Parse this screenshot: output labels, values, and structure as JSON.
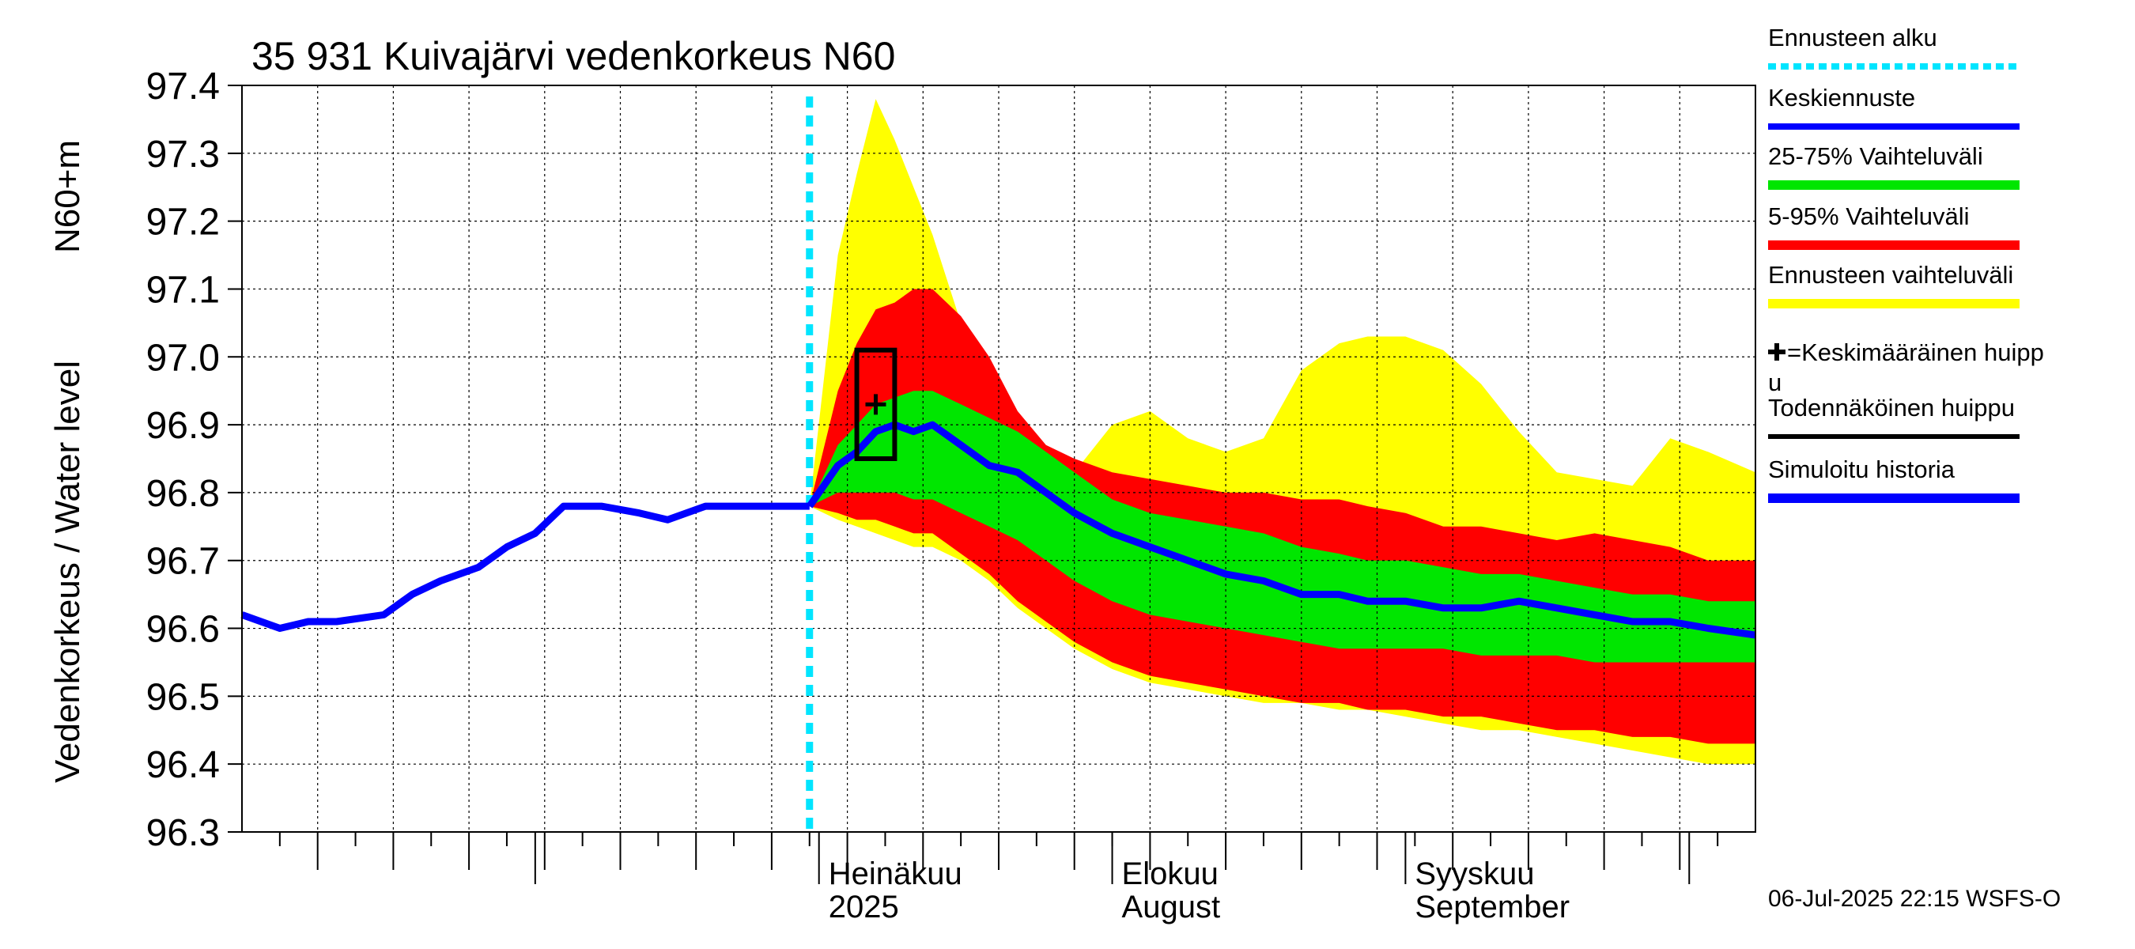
{
  "chart_data": {
    "type": "area",
    "title": "35 931 Kuivajärvi vedenkorkeus N60",
    "ylabel_unit": "N60+m",
    "ylabel": "Vedenkorkeus / Water level",
    "ylim": [
      96.3,
      97.4
    ],
    "yticks": [
      "96.3",
      "96.4",
      "96.5",
      "96.6",
      "96.7",
      "96.8",
      "96.9",
      "97.0",
      "97.1",
      "97.2",
      "97.3",
      "97.4"
    ],
    "grid": true,
    "legend_position": "right",
    "x_start": "2025-05-01",
    "x_end": "2025-10-08",
    "forecast_start": "2025-06-30",
    "month_labels": [
      {
        "date": "2025-07-01",
        "line1": "Heinäkuu",
        "line2": "2025"
      },
      {
        "date": "2025-08-01",
        "line1": "Elokuu",
        "line2": "August"
      },
      {
        "date": "2025-09-01",
        "line1": "Syyskuu",
        "line2": "September"
      }
    ],
    "history": {
      "name": "Simuloitu historia",
      "x": [
        "2025-05-01",
        "2025-05-05",
        "2025-05-08",
        "2025-05-11",
        "2025-05-16",
        "2025-05-19",
        "2025-05-22",
        "2025-05-26",
        "2025-05-29",
        "2025-06-01",
        "2025-06-04",
        "2025-06-08",
        "2025-06-12",
        "2025-06-15",
        "2025-06-19",
        "2025-06-22",
        "2025-06-25",
        "2025-06-28",
        "2025-06-30"
      ],
      "y": [
        96.62,
        96.6,
        96.61,
        96.61,
        96.62,
        96.65,
        96.67,
        96.69,
        96.72,
        96.74,
        96.78,
        96.78,
        96.77,
        96.76,
        96.78,
        96.78,
        96.78,
        96.78,
        96.78
      ]
    },
    "forecast_x": [
      "2025-06-30",
      "2025-07-03",
      "2025-07-05",
      "2025-07-07",
      "2025-07-09",
      "2025-07-11",
      "2025-07-13",
      "2025-07-16",
      "2025-07-19",
      "2025-07-22",
      "2025-07-25",
      "2025-07-28",
      "2025-08-01",
      "2025-08-05",
      "2025-08-09",
      "2025-08-13",
      "2025-08-17",
      "2025-08-21",
      "2025-08-25",
      "2025-08-28",
      "2025-09-01",
      "2025-09-05",
      "2025-09-09",
      "2025-09-13",
      "2025-09-17",
      "2025-09-21",
      "2025-09-25",
      "2025-09-29",
      "2025-10-03",
      "2025-10-08"
    ],
    "median": {
      "name": "Keskiennuste",
      "y": [
        96.78,
        96.84,
        96.86,
        96.89,
        96.9,
        96.89,
        96.9,
        96.87,
        96.84,
        96.83,
        96.8,
        96.77,
        96.74,
        96.72,
        96.7,
        96.68,
        96.67,
        96.65,
        96.65,
        96.64,
        96.64,
        96.63,
        96.63,
        96.64,
        96.63,
        96.62,
        96.61,
        96.61,
        96.6,
        96.59
      ]
    },
    "band_25_75": {
      "name": "25-75% Vaihteluväli",
      "lower": [
        96.78,
        96.8,
        96.8,
        96.8,
        96.8,
        96.79,
        96.79,
        96.77,
        96.75,
        96.73,
        96.7,
        96.67,
        96.64,
        96.62,
        96.61,
        96.6,
        96.59,
        96.58,
        96.57,
        96.57,
        96.57,
        96.57,
        96.56,
        96.56,
        96.56,
        96.55,
        96.55,
        96.55,
        96.55,
        96.55
      ],
      "upper": [
        96.78,
        96.87,
        96.9,
        96.93,
        96.94,
        96.95,
        96.95,
        96.93,
        96.91,
        96.89,
        96.86,
        96.83,
        96.79,
        96.77,
        96.76,
        96.75,
        96.74,
        96.72,
        96.71,
        96.7,
        96.7,
        96.69,
        96.68,
        96.68,
        96.67,
        96.66,
        96.65,
        96.65,
        96.64,
        96.64
      ]
    },
    "band_5_95": {
      "name": "5-95% Vaihteluväli",
      "lower": [
        96.78,
        96.77,
        96.76,
        96.76,
        96.75,
        96.74,
        96.74,
        96.71,
        96.68,
        96.64,
        96.61,
        96.58,
        96.55,
        96.53,
        96.52,
        96.51,
        96.5,
        96.49,
        96.49,
        96.48,
        96.48,
        96.47,
        96.47,
        96.46,
        96.45,
        96.45,
        96.44,
        96.44,
        96.43,
        96.43
      ],
      "upper": [
        96.78,
        96.95,
        97.02,
        97.07,
        97.08,
        97.1,
        97.1,
        97.06,
        97.0,
        96.92,
        96.87,
        96.85,
        96.83,
        96.82,
        96.81,
        96.8,
        96.8,
        96.79,
        96.79,
        96.78,
        96.77,
        96.75,
        96.75,
        96.74,
        96.73,
        96.74,
        96.73,
        96.72,
        96.7,
        96.7
      ]
    },
    "band_range": {
      "name": "Ennusteen vaihteluväli",
      "lower": [
        96.78,
        96.76,
        96.75,
        96.74,
        96.73,
        96.72,
        96.72,
        96.7,
        96.67,
        96.63,
        96.6,
        96.57,
        96.54,
        96.52,
        96.51,
        96.5,
        96.49,
        96.49,
        96.48,
        96.48,
        96.47,
        96.46,
        96.45,
        96.45,
        96.44,
        96.43,
        96.42,
        96.41,
        96.4,
        96.4
      ],
      "upper": [
        96.78,
        97.15,
        97.27,
        97.38,
        97.32,
        97.25,
        97.18,
        97.05,
        96.95,
        96.9,
        96.86,
        96.83,
        96.9,
        96.92,
        96.88,
        96.86,
        96.88,
        96.98,
        97.02,
        97.03,
        97.03,
        97.01,
        96.96,
        96.89,
        96.83,
        96.82,
        96.81,
        96.88,
        96.86,
        96.83
      ]
    },
    "mean_peak": {
      "x": "2025-07-07",
      "y": 96.93
    },
    "probable_peak": {
      "x_start": "2025-07-05",
      "x_end": "2025-07-09",
      "y_low": 96.85,
      "y_high": 97.01
    },
    "legend": [
      {
        "label": "Ennusteen alku",
        "color": "#00e5ff",
        "style": "dashed"
      },
      {
        "label": "Keskiennuste",
        "color": "#0000ff",
        "style": "line"
      },
      {
        "label": "25-75% Vaihteluväli",
        "color": "#00e600",
        "style": "line"
      },
      {
        "label": "5-95% Vaihteluväli",
        "color": "#ff0000",
        "style": "line"
      },
      {
        "label": "Ennusteen vaihteluväli",
        "color": "#ffff00",
        "style": "line"
      },
      {
        "label_line1": "=Keskimääräinen huipp",
        "label_line2": "u",
        "color": "#000000",
        "style": "plus"
      },
      {
        "label": "Todennäköinen huippu",
        "color": "#000000",
        "style": "line"
      },
      {
        "label": "Simuloitu historia",
        "color": "#0000ff",
        "style": "line"
      }
    ],
    "footer": "06-Jul-2025 22:15 WSFS-O"
  }
}
